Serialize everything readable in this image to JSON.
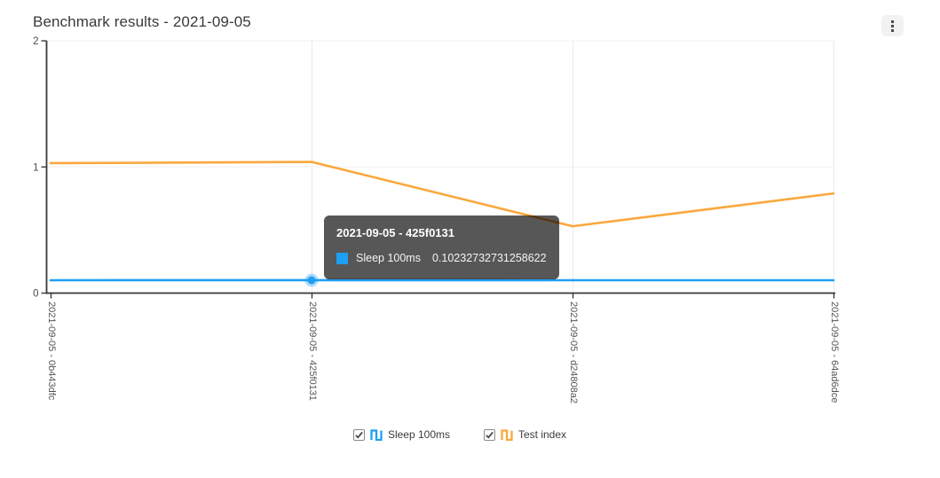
{
  "header": {
    "title": "Benchmark results - 2021-09-05",
    "menu_icon": "kebab-menu"
  },
  "chart_data": {
    "type": "line",
    "title": "Benchmark results - 2021-09-05",
    "xlabel": "",
    "ylabel": "",
    "categories": [
      "2021-09-05 - 0b443dfc",
      "2021-09-05 - 425f0131",
      "2021-09-05 - d24808a2",
      "2021-09-05 - 64ad6dce"
    ],
    "series": [
      {
        "name": "Sleep 100ms",
        "color": "#1e9ff2",
        "values": [
          0.102,
          0.10232732731258622,
          0.102,
          0.102
        ]
      },
      {
        "name": "Test index",
        "color": "#faa83c",
        "values": [
          1.03,
          1.04,
          0.53,
          0.79
        ]
      }
    ],
    "ylim": [
      0,
      2
    ],
    "yticks": [
      0,
      1,
      2
    ],
    "grid": true,
    "legend_position": "bottom",
    "hover": {
      "series": "Sleep 100ms",
      "series_index": 0,
      "point_index": 1
    }
  },
  "tooltip": {
    "title": "2021-09-05 - 425f0131",
    "series_label": "Sleep 100ms",
    "value": "0.10232732731258622",
    "swatch_color": "#1e9ff2"
  },
  "legend": {
    "items": [
      {
        "label": "Sleep 100ms",
        "checked": true,
        "color": "#1e9ff2",
        "icon": "square-wave-icon"
      },
      {
        "label": "Test index",
        "checked": true,
        "color": "#faa83c",
        "icon": "square-wave-icon"
      }
    ]
  }
}
